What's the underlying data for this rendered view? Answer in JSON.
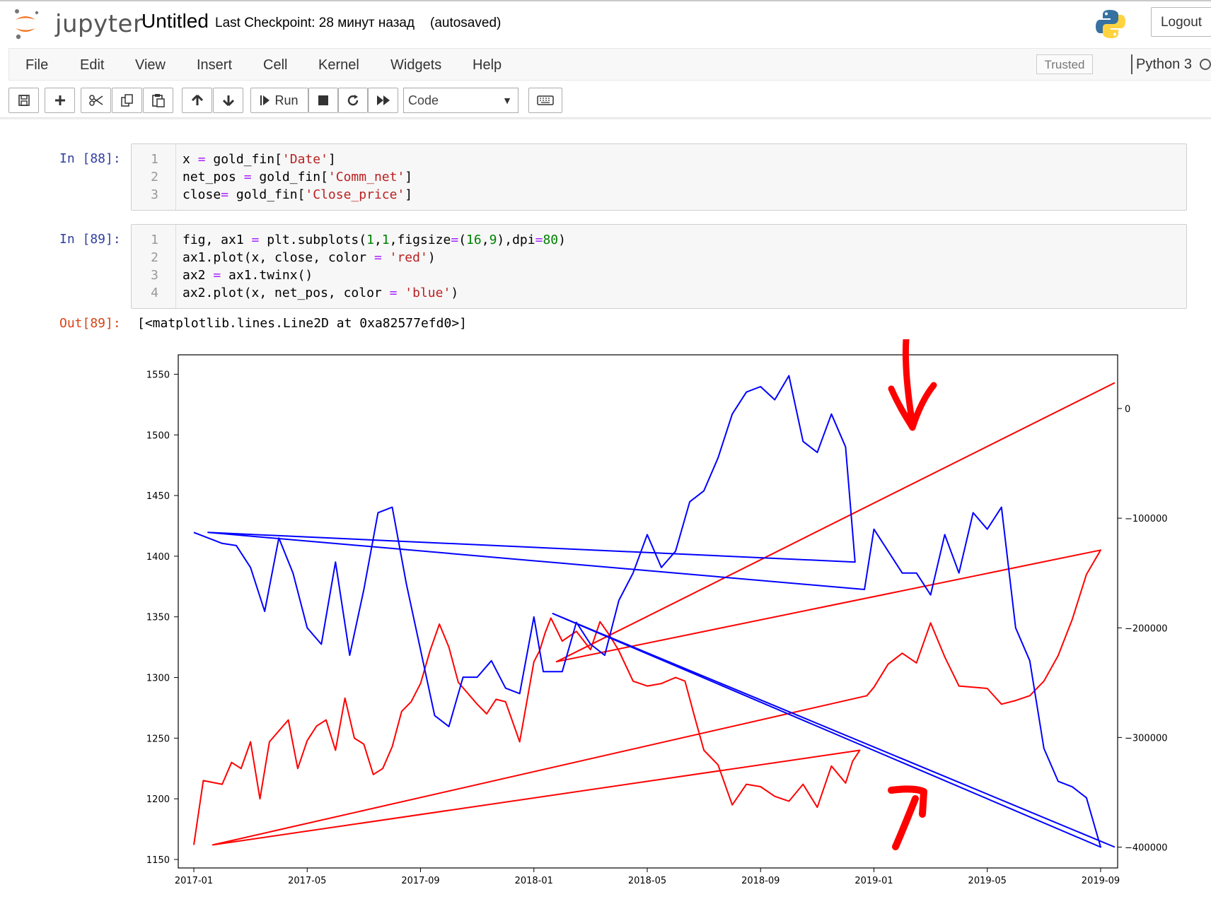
{
  "header": {
    "app_name": "jupyter",
    "notebook_title": "Untitled",
    "checkpoint": "Last Checkpoint: 28 минут назад",
    "autosave_status": "(autosaved)",
    "logout_label": "Logout"
  },
  "menubar": {
    "items": [
      "File",
      "Edit",
      "View",
      "Insert",
      "Cell",
      "Kernel",
      "Widgets",
      "Help"
    ],
    "trusted_label": "Trusted",
    "kernel_name": "Python 3"
  },
  "toolbar": {
    "run_label": "Run",
    "cell_type": "Code"
  },
  "cells": [
    {
      "prompt": "In [88]:",
      "lines": [
        [
          "1",
          "x = gold_fin['Date']"
        ],
        [
          "2",
          "net_pos = gold_fin['Comm_net']"
        ],
        [
          "3",
          "close= gold_fin['Close_price']"
        ]
      ]
    },
    {
      "prompt": "In [89]:",
      "lines": [
        [
          "1",
          "fig, ax1 = plt.subplots(1,1,figsize=(16,9),dpi=80)"
        ],
        [
          "2",
          "ax1.plot(x, close, color = 'red')"
        ],
        [
          "3",
          "ax2 = ax1.twinx()"
        ],
        [
          "4",
          "ax2.plot(x, net_pos, color = 'blue')"
        ]
      ]
    }
  ],
  "output": {
    "prompt": "Out[89]:",
    "text": "[<matplotlib.lines.Line2D at 0xa82577efd0>]"
  },
  "chart_data": {
    "type": "line",
    "title": "",
    "xlabel": "",
    "ylabel": "",
    "x_ticks": [
      "2017-01",
      "2017-05",
      "2017-09",
      "2018-01",
      "2018-05",
      "2018-09",
      "2019-01",
      "2019-05",
      "2019-09"
    ],
    "y_left_ticks": [
      1150,
      1200,
      1250,
      1300,
      1350,
      1400,
      1450,
      1500,
      1550
    ],
    "y_right_ticks": [
      0,
      -100000,
      -200000,
      -300000,
      -400000
    ],
    "y_left_lim": [
      1143,
      1566
    ],
    "y_right_lim": [
      -419000,
      49000
    ],
    "x_lim_months": [
      -0.55,
      32.6
    ],
    "grid": false,
    "series": [
      {
        "color": "#ff0000",
        "axis": "left",
        "x": [
          "2017-01",
          "2017-01",
          "2017-02",
          "2017-02",
          "2017-02",
          "2017-03",
          "2017-03",
          "2017-03",
          "2017-04",
          "2017-04",
          "2017-04",
          "2017-05",
          "2017-05",
          "2017-05",
          "2017-06",
          "2017-06",
          "2017-06",
          "2017-07",
          "2017-07",
          "2017-07",
          "2017-08",
          "2017-08",
          "2017-08",
          "2017-09",
          "2017-09",
          "2017-09",
          "2017-10",
          "2017-10",
          "2017-10",
          "2017-11",
          "2017-11",
          "2017-11",
          "2017-12",
          "2017-12",
          "2018-01",
          "2018-01",
          "2018-01",
          "2018-01",
          "2018-02",
          "2018-02",
          "2018-03",
          "2018-03",
          "2018-03",
          "2018-04",
          "2018-04",
          "2018-05",
          "2018-05",
          "2018-06",
          "2018-06",
          "2018-06",
          "2018-07",
          "2018-07",
          "2018-08",
          "2018-08",
          "2018-09",
          "2018-09",
          "2018-10",
          "2018-10",
          "2018-11",
          "2018-11",
          "2018-12",
          "2018-12",
          "2018-12",
          "2017-01",
          "2018-12",
          "2019-01",
          "2019-01",
          "2019-02",
          "2019-02",
          "2019-03",
          "2019-03",
          "2019-04",
          "2019-04",
          "2019-05",
          "2019-05",
          "2019-06",
          "2019-06",
          "2019-07",
          "2019-07",
          "2019-08",
          "2019-08",
          "2019-09",
          "2018-01",
          "2019-09"
        ],
        "y": [
          1162,
          1215,
          1212,
          1230,
          1225,
          1247,
          1200,
          1247,
          1256,
          1265,
          1225,
          1248,
          1260,
          1265,
          1240,
          1283,
          1250,
          1245,
          1220,
          1225,
          1243,
          1272,
          1280,
          1295,
          1322,
          1344,
          1325,
          1296,
          1287,
          1278,
          1270,
          1282,
          1280,
          1247,
          1313,
          1322,
          1337,
          1349,
          1330,
          1338,
          1323,
          1346,
          1335,
          1322,
          1297,
          1293,
          1295,
          1300,
          1297,
          1268,
          1240,
          1228,
          1195,
          1212,
          1210,
          1202,
          1198,
          1212,
          1193,
          1227,
          1213,
          1231,
          1240,
          1162,
          1285,
          1292,
          1311,
          1320,
          1312,
          1345,
          1317,
          1293,
          1292,
          1291,
          1278,
          1281,
          1285,
          1297,
          1318,
          1348,
          1385,
          1405,
          1313,
          1543
        ],
        "note": "values approximate, read from plot"
      },
      {
        "color": "#0000ff",
        "axis": "right",
        "x": [
          "2017-01",
          "2017-02",
          "2017-02",
          "2017-03",
          "2017-03",
          "2017-04",
          "2017-04",
          "2017-05",
          "2017-05",
          "2017-06",
          "2017-06",
          "2017-07",
          "2017-07",
          "2017-08",
          "2017-08",
          "2017-09",
          "2017-09",
          "2017-10",
          "2017-10",
          "2017-11",
          "2017-11",
          "2017-12",
          "2017-12",
          "2018-01",
          "2018-01",
          "2018-02",
          "2018-02",
          "2018-03",
          "2018-03",
          "2018-04",
          "2018-04",
          "2018-05",
          "2018-05",
          "2018-06",
          "2018-06",
          "2018-07",
          "2018-07",
          "2018-08",
          "2018-08",
          "2018-09",
          "2018-09",
          "2018-10",
          "2018-10",
          "2018-11",
          "2018-11",
          "2018-12",
          "2018-12",
          "2017-01",
          "2018-12",
          "2019-01",
          "2019-02",
          "2019-02",
          "2019-03",
          "2019-03",
          "2019-04",
          "2019-04",
          "2019-05",
          "2019-05",
          "2019-06",
          "2019-06",
          "2019-07",
          "2019-07",
          "2019-08",
          "2019-08",
          "2019-09",
          "2018-01",
          "2019-09"
        ],
        "y": [
          -113000,
          -123000,
          -125000,
          -145000,
          -185000,
          -118000,
          -150000,
          -200000,
          -215000,
          -140000,
          -225000,
          -165000,
          -95000,
          -90000,
          -160000,
          -220000,
          -280000,
          -290000,
          -245000,
          -245000,
          -230000,
          -255000,
          -260000,
          -190000,
          -240000,
          -240000,
          -195000,
          -215000,
          -225000,
          -175000,
          -150000,
          -115000,
          -145000,
          -130000,
          -85000,
          -75000,
          -45000,
          -5000,
          15000,
          20000,
          8000,
          30000,
          -30000,
          -40000,
          -5000,
          -35000,
          -140000,
          -113000,
          -165000,
          -110000,
          -150000,
          -150000,
          -170000,
          -115000,
          -150000,
          -95000,
          -110000,
          -90000,
          -200000,
          -230000,
          -310000,
          -340000,
          -345000,
          -355000,
          -400000,
          -187000,
          -400000
        ],
        "note": "values approximate, read from plot"
      }
    ]
  }
}
